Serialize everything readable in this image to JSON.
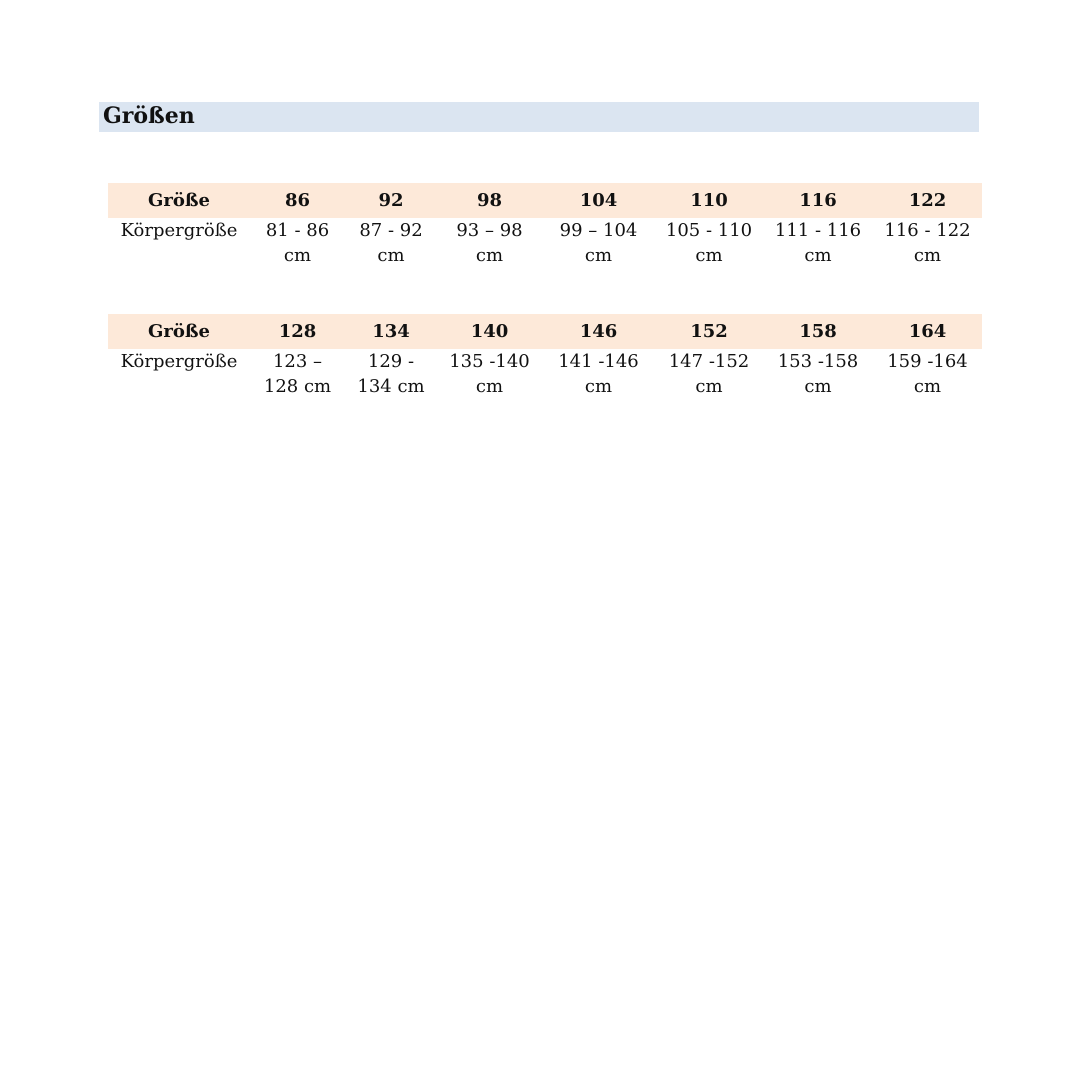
{
  "heading": "Größen",
  "tables": [
    {
      "header_label": "Größe",
      "row_label": "Körpergröße",
      "sizes": [
        "86",
        "92",
        "98",
        "104",
        "110",
        "116",
        "122"
      ],
      "heights": [
        [
          "81 - 86",
          "cm"
        ],
        [
          "87 - 92",
          "cm"
        ],
        [
          "93 – 98",
          "cm"
        ],
        [
          "99 – 104",
          "cm"
        ],
        [
          "105 - 110",
          "cm"
        ],
        [
          "111 - 116",
          "cm"
        ],
        [
          "116 - 122",
          "cm"
        ]
      ]
    },
    {
      "header_label": "Größe",
      "row_label": "Körpergröße",
      "sizes": [
        "128",
        "134",
        "140",
        "146",
        "152",
        "158",
        "164"
      ],
      "heights": [
        [
          "123 –",
          "128 cm"
        ],
        [
          "129 -",
          "134 cm"
        ],
        [
          "135 -140",
          "cm"
        ],
        [
          "141 -146",
          "cm"
        ],
        [
          "147 -152",
          "cm"
        ],
        [
          "153 -158",
          "cm"
        ],
        [
          "159 -164",
          "cm"
        ]
      ]
    }
  ],
  "colors": {
    "heading_bg": "#dbe5f1",
    "header_row_bg": "#fde9d9"
  }
}
